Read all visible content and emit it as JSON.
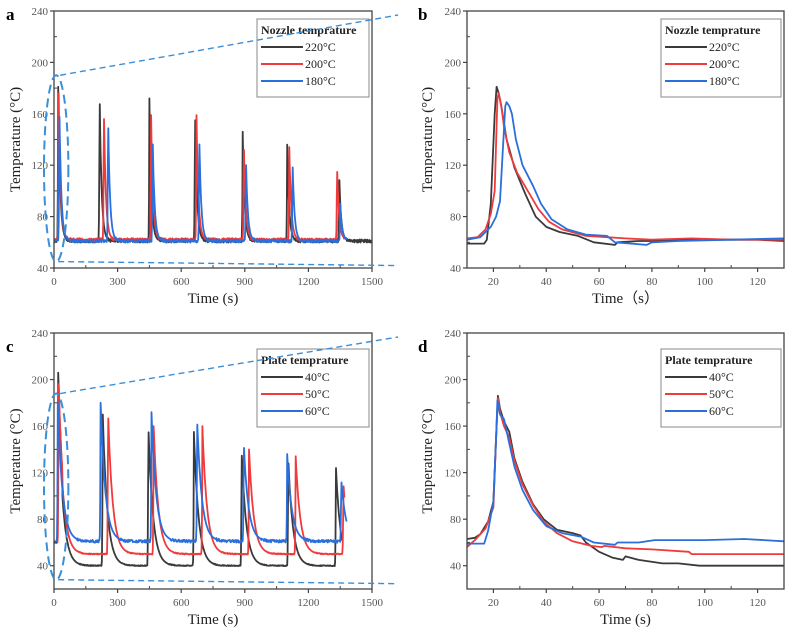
{
  "colors": {
    "black_series": "#3a3a3a",
    "red_series": "#ef3b3b",
    "blue_series": "#2a6fdb",
    "zoom_marker": "#3b8fd8",
    "axis": "#444444"
  },
  "chart_data": [
    {
      "panel": "a",
      "type": "line",
      "xlabel": "Time (s)",
      "ylabel": "Temperature (°C)",
      "xlim": [
        0,
        1500
      ],
      "ylim": [
        40,
        240
      ],
      "xticks": [
        0,
        300,
        600,
        900,
        1200,
        1500
      ],
      "yticks": [
        40,
        80,
        120,
        160,
        200,
        240
      ],
      "legend": {
        "title": "Nozzle temprature",
        "position": "top-right"
      },
      "zoom_region": {
        "x_range": [
          0,
          30
        ],
        "y_range": [
          45,
          190
        ]
      },
      "series": [
        {
          "name": "220°C",
          "color_key": "black_series",
          "baseline": 61,
          "peaks": [
            [
              20,
              181
            ],
            [
              215,
              180
            ],
            [
              450,
              172
            ],
            [
              665,
              166
            ],
            [
              890,
              146
            ],
            [
              1100,
              136
            ],
            [
              1345,
              114
            ]
          ]
        },
        {
          "name": "200°C",
          "color_key": "red_series",
          "baseline": 62,
          "peaks": [
            [
              22,
              176
            ],
            [
              235,
              167
            ],
            [
              458,
              159
            ],
            [
              672,
              159
            ],
            [
              895,
              140
            ],
            [
              1110,
              134
            ],
            [
              1335,
              121
            ]
          ]
        },
        {
          "name": "180°C",
          "color_key": "blue_series",
          "baseline": 61,
          "peaks": [
            [
              25,
              169
            ],
            [
              255,
              159
            ],
            [
              465,
              145
            ],
            [
              685,
              145
            ],
            [
              905,
              127
            ],
            [
              1125,
              125
            ],
            [
              1350,
              90
            ]
          ]
        }
      ]
    },
    {
      "panel": "b",
      "type": "line",
      "xlabel": "Time（s）",
      "ylabel": "Temperature (°C)",
      "xlim": [
        10,
        130
      ],
      "ylim": [
        40,
        240
      ],
      "xticks": [
        20,
        40,
        60,
        80,
        100,
        120
      ],
      "yticks": [
        40,
        80,
        120,
        160,
        200,
        240
      ],
      "legend": {
        "title": "Nozzle temprature",
        "position": "top-right"
      },
      "series": [
        {
          "name": "220°C",
          "color_key": "black_series",
          "x": [
            10,
            16.5,
            17.5,
            19,
            20.5,
            21.2,
            22,
            23,
            25,
            28,
            32,
            36,
            40,
            45,
            52,
            58,
            66,
            67,
            75,
            82,
            95,
            110,
            120,
            130
          ],
          "y": [
            59,
            59,
            62,
            90,
            160,
            181,
            176,
            166,
            140,
            118,
            98,
            80,
            72,
            68,
            65,
            60,
            58,
            60,
            61,
            61,
            62,
            62,
            62,
            61
          ]
        },
        {
          "name": "200°C",
          "color_key": "red_series",
          "x": [
            10,
            14,
            17,
            19,
            20.5,
            21.5,
            22,
            23,
            24,
            26,
            29,
            33,
            37,
            41,
            46,
            55,
            63,
            70,
            80,
            95,
            110,
            130
          ],
          "y": [
            63,
            64,
            70,
            82,
            100,
            172,
            176,
            166,
            150,
            130,
            114,
            100,
            86,
            76,
            70,
            65,
            64,
            63,
            62,
            63,
            62,
            62
          ]
        },
        {
          "name": "180°C",
          "color_key": "blue_series",
          "x": [
            10,
            15,
            19,
            21,
            22.5,
            23.5,
            24.5,
            25,
            26,
            27,
            28.5,
            31,
            35,
            38,
            42,
            48,
            55,
            63,
            66,
            72,
            78,
            80,
            90,
            110,
            130
          ],
          "y": [
            62,
            64,
            72,
            80,
            92,
            130,
            166,
            169,
            166,
            160,
            140,
            120,
            104,
            90,
            78,
            70,
            66,
            65,
            60,
            59,
            58,
            60,
            61,
            62,
            63
          ]
        }
      ]
    },
    {
      "panel": "c",
      "type": "line",
      "xlabel": "Time (s)",
      "ylabel": "Temperature (°C)",
      "xlim": [
        0,
        1500
      ],
      "ylim": [
        20,
        240
      ],
      "xticks": [
        0,
        300,
        600,
        900,
        1200,
        1500
      ],
      "yticks": [
        40,
        80,
        120,
        160,
        200,
        240
      ],
      "legend": {
        "title": "Plate temprature",
        "position": "top-right"
      },
      "zoom_region": {
        "x_range": [
          0,
          30
        ],
        "y_range": [
          28,
          188
        ]
      },
      "series": [
        {
          "name": "40°C",
          "color_key": "black_series",
          "baseline": 40,
          "peaks": [
            [
              20,
              186
            ],
            [
              230,
              170
            ],
            [
              445,
              160
            ],
            [
              660,
              155
            ],
            [
              885,
              139
            ],
            [
              1105,
              132
            ],
            [
              1330,
              124
            ]
          ]
        },
        {
          "name": "50°C",
          "color_key": "red_series",
          "baseline": 50,
          "peaks": [
            [
              22,
              186
            ],
            [
              255,
              172
            ],
            [
              470,
              160
            ],
            [
              700,
              160
            ],
            [
              920,
              140
            ],
            [
              1140,
              134
            ],
            [
              1365,
              111
            ]
          ]
        },
        {
          "name": "60°C",
          "color_key": "blue_series",
          "baseline": 61,
          "peaks": [
            [
              18,
              182
            ],
            [
              220,
              180
            ],
            [
              460,
              172
            ],
            [
              675,
              166
            ],
            [
              895,
              145
            ],
            [
              1100,
              136
            ],
            [
              1355,
              114
            ]
          ]
        }
      ]
    },
    {
      "panel": "d",
      "type": "line",
      "xlabel": "Time (s)",
      "ylabel": "Temperature (°C)",
      "xlim": [
        10,
        130
      ],
      "ylim": [
        20,
        240
      ],
      "xticks": [
        20,
        40,
        60,
        80,
        100,
        120
      ],
      "yticks": [
        40,
        80,
        120,
        160,
        200,
        240
      ],
      "legend": {
        "title": "Plate temprature",
        "position": "top-right"
      },
      "series": [
        {
          "name": "40°C",
          "color_key": "black_series",
          "x": [
            10,
            13,
            15,
            18,
            20,
            21,
            21.7,
            22.5,
            24,
            26,
            28,
            31,
            35,
            39,
            44,
            50,
            53,
            55,
            60,
            65,
            69,
            70,
            75,
            84,
            90,
            98,
            110,
            130
          ],
          "y": [
            63,
            64,
            67,
            78,
            95,
            150,
            186,
            175,
            164,
            155,
            132,
            112,
            93,
            80,
            71,
            68,
            66,
            60,
            52,
            47,
            45,
            48,
            45,
            42,
            42,
            40,
            40,
            40
          ]
        },
        {
          "name": "50°C",
          "color_key": "red_series",
          "x": [
            10,
            13,
            17,
            20,
            21,
            21.7,
            22.5,
            24,
            26,
            28,
            31,
            35,
            39,
            44,
            50,
            57,
            61,
            62,
            70,
            80,
            94,
            95,
            110,
            130
          ],
          "y": [
            56,
            62,
            72,
            90,
            150,
            184,
            172,
            160,
            150,
            130,
            110,
            92,
            78,
            68,
            61,
            57,
            56,
            57,
            55,
            54,
            52,
            50,
            50,
            50
          ]
        },
        {
          "name": "60°C",
          "color_key": "blue_series",
          "x": [
            10,
            16.5,
            18,
            20,
            21,
            21.5,
            22.5,
            24,
            26,
            28,
            31,
            35,
            40,
            46,
            53,
            58,
            66,
            67,
            75,
            81,
            90,
            100,
            115,
            130
          ],
          "y": [
            59,
            59,
            70,
            95,
            150,
            182,
            170,
            166,
            145,
            125,
            105,
            88,
            74,
            68,
            65,
            60,
            58,
            60,
            60,
            62,
            62,
            62,
            63,
            61
          ]
        }
      ]
    }
  ]
}
